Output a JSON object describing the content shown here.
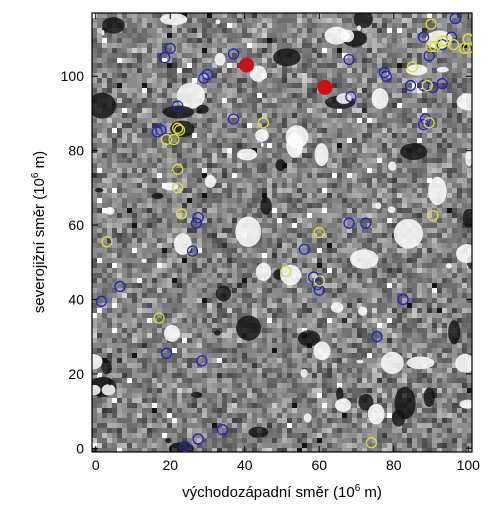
{
  "chart_data": {
    "type": "scatter",
    "xlabel": "východozápadní směr (10^6 m)",
    "ylabel": "severojižní směr (10^6 m)",
    "xlabel_parts": {
      "before": "východozápadní směr (10",
      "exp": "6",
      "after": " m)"
    },
    "ylabel_parts": {
      "before": "severojižní směr (10",
      "exp": "6",
      "after": " m)"
    },
    "xlim": [
      -1,
      101
    ],
    "ylim": [
      -1,
      117
    ],
    "x_ticks": [
      0,
      20,
      40,
      60,
      80,
      100
    ],
    "y_ticks": [
      0,
      20,
      40,
      60,
      80,
      100
    ],
    "grid": false,
    "background": "grayscale noise map",
    "series": [
      {
        "color": "#2222cc",
        "marker": "open-circle",
        "points": [
          [
            1.5,
            39.5
          ],
          [
            6.5,
            43.5
          ],
          [
            17.5,
            85.5
          ],
          [
            16.5,
            85
          ],
          [
            18.5,
            105
          ],
          [
            20,
            107.5
          ],
          [
            19,
            25.5
          ],
          [
            22,
            92
          ],
          [
            26,
            53
          ],
          [
            27,
            60.5
          ],
          [
            27.5,
            62
          ],
          [
            27.5,
            2.5
          ],
          [
            28.5,
            23.5
          ],
          [
            29,
            99.5
          ],
          [
            30,
            100.5
          ],
          [
            24,
            0.5
          ],
          [
            34,
            5
          ],
          [
            37,
            106
          ],
          [
            37,
            88.5
          ],
          [
            56,
            53.5
          ],
          [
            58.5,
            46
          ],
          [
            59.5,
            44
          ],
          [
            60,
            42.5
          ],
          [
            68,
            104.5
          ],
          [
            68.5,
            94.5
          ],
          [
            68,
            60.5
          ],
          [
            72.5,
            60.5
          ],
          [
            77.5,
            101
          ],
          [
            78,
            100
          ],
          [
            82.5,
            40
          ],
          [
            75.5,
            30
          ],
          [
            88,
            97.5
          ],
          [
            88.5,
            88.5
          ],
          [
            88,
            87
          ],
          [
            89.5,
            105.5
          ],
          [
            90.5,
            97
          ],
          [
            88,
            110.5
          ],
          [
            93,
            98
          ],
          [
            93,
            108.5
          ],
          [
            95.5,
            110.5
          ],
          [
            96.5,
            115.5
          ],
          [
            84.5,
            97.5
          ]
        ]
      },
      {
        "color": "#dddd33",
        "marker": "open-circle",
        "points": [
          [
            3,
            55.5
          ],
          [
            17,
            35
          ],
          [
            19,
            83
          ],
          [
            21,
            83
          ],
          [
            22,
            86
          ],
          [
            22.5,
            85.5
          ],
          [
            22,
            75
          ],
          [
            22,
            70
          ],
          [
            23,
            63
          ],
          [
            45,
            87.5
          ],
          [
            51,
            47.5
          ],
          [
            60,
            58
          ],
          [
            60,
            45
          ],
          [
            74,
            1.5
          ],
          [
            85,
            102.5
          ],
          [
            89,
            97.5
          ],
          [
            89.5,
            87.5
          ],
          [
            90,
            114
          ],
          [
            90,
            108
          ],
          [
            91,
            108
          ],
          [
            90.5,
            62.5
          ],
          [
            93,
            109.5
          ],
          [
            94,
            109.5
          ],
          [
            96,
            108.5
          ],
          [
            99,
            107.5
          ],
          [
            100,
            107.5
          ],
          [
            100,
            110
          ]
        ]
      },
      {
        "color": "#cc1111",
        "marker": "filled-circle",
        "points": [
          [
            40.5,
            103
          ],
          [
            61.5,
            97
          ]
        ]
      }
    ]
  }
}
